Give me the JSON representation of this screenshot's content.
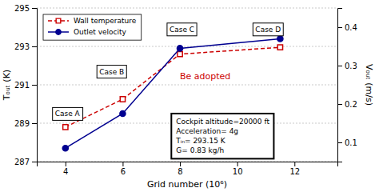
{
  "chart_data": {
    "type": "line",
    "x": [
      4,
      6,
      8,
      11.5
    ],
    "xlabel": "Grid number (10⁶)",
    "ylabel": "Tₒᵤₜ (K)",
    "y2label": "Vₒᵤₜ (m/s)",
    "xlim": [
      3,
      13.5
    ],
    "xticks": [
      4,
      6,
      8,
      10,
      12
    ],
    "ylim": [
      287,
      295
    ],
    "yticks": [
      287,
      289,
      291,
      293,
      295
    ],
    "y2lim": [
      0.05,
      0.45
    ],
    "y2ticks": [
      0.1,
      0.2,
      0.3,
      0.4
    ],
    "grid": true,
    "legend": "upper left",
    "series": [
      {
        "name": "Wall temperature",
        "color": "#cc0000",
        "marker": "open-square",
        "line_style": "dashed",
        "values": [
          288.8,
          290.25,
          292.6,
          292.95
        ]
      },
      {
        "name": "Outlet velocity",
        "color": "#000090",
        "marker": "circle",
        "line_style": "solid",
        "axis": "y2",
        "values": [
          0.085,
          0.175,
          0.345,
          0.37
        ]
      }
    ],
    "annotations": [
      {
        "text": "Case A",
        "x": 3.55,
        "y": 289.15
      },
      {
        "text": "Case B",
        "x": 5.1,
        "y": 291.35
      },
      {
        "text": "Case C",
        "x": 7.55,
        "y": 293.55
      },
      {
        "text": "Case D",
        "x": 10.55,
        "y": 293.55
      },
      {
        "text": "Be adopted",
        "x": 8.0,
        "y": 291.3,
        "color": "#cc0000"
      },
      {
        "text": [
          "Cockpit altitude=20000 ft",
          "Acceleration= 4g",
          "Tᵢₙ= 293.15 K",
          "G= 0.83 kg/h"
        ],
        "x": 7.7,
        "y": 287.15
      }
    ]
  }
}
